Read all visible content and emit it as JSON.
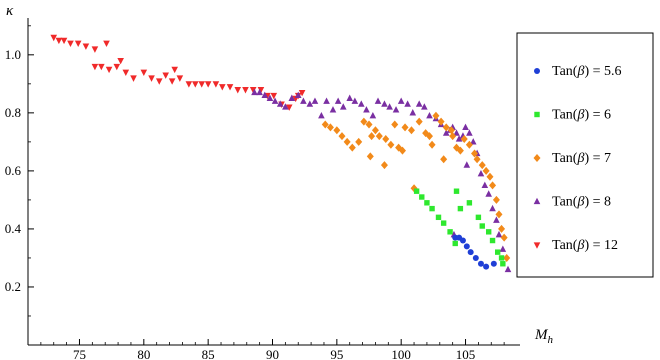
{
  "chart_data": {
    "type": "scatter",
    "xlabel": "M_h",
    "xlabel_main": "M",
    "xlabel_sub": "h",
    "ylabel": "κ",
    "xlim": [
      71,
      109
    ],
    "ylim": [
      0.0,
      1.12
    ],
    "x_ticks": [
      75,
      80,
      85,
      90,
      95,
      100,
      105
    ],
    "x_tick_labels": [
      "75",
      "80",
      "85",
      "90",
      "95",
      "100",
      "105"
    ],
    "y_ticks": [
      0.2,
      0.4,
      0.6,
      0.8,
      1.0
    ],
    "y_tick_labels": [
      "0.2",
      "0.4",
      "0.6",
      "0.8",
      "1.0"
    ],
    "grid": false,
    "legend_position": "right",
    "series": [
      {
        "name": "Tan(β) = 5.6",
        "label_prefix": "Tan(",
        "label_symbol": "β",
        "label_suffix": ") = 5.6",
        "color": "#1f3fd6",
        "marker": "circle",
        "points": [
          [
            104.2,
            0.37
          ],
          [
            104.5,
            0.37
          ],
          [
            104.8,
            0.36
          ],
          [
            105.1,
            0.34
          ],
          [
            105.4,
            0.32
          ],
          [
            105.8,
            0.3
          ],
          [
            106.2,
            0.28
          ],
          [
            106.6,
            0.27
          ],
          [
            107.2,
            0.28
          ]
        ]
      },
      {
        "name": "Tan(β) = 6",
        "label_prefix": "Tan(",
        "label_symbol": "β",
        "label_suffix": ") = 6",
        "color": "#2ee82e",
        "marker": "square",
        "points": [
          [
            101.2,
            0.53
          ],
          [
            101.6,
            0.51
          ],
          [
            102.0,
            0.49
          ],
          [
            102.4,
            0.47
          ],
          [
            102.9,
            0.44
          ],
          [
            103.3,
            0.42
          ],
          [
            103.8,
            0.39
          ],
          [
            104.2,
            0.35
          ],
          [
            104.3,
            0.53
          ],
          [
            104.6,
            0.47
          ],
          [
            105.3,
            0.49
          ],
          [
            106.0,
            0.44
          ],
          [
            106.3,
            0.41
          ],
          [
            106.8,
            0.39
          ],
          [
            107.1,
            0.36
          ],
          [
            107.5,
            0.32
          ],
          [
            107.8,
            0.3
          ],
          [
            107.9,
            0.28
          ]
        ]
      },
      {
        "name": "Tan(β) = 7",
        "label_prefix": "Tan(",
        "label_symbol": "β",
        "label_suffix": ") = 7",
        "color": "#f28a1a",
        "marker": "diamond",
        "points": [
          [
            94.1,
            0.76
          ],
          [
            94.5,
            0.75
          ],
          [
            95.0,
            0.74
          ],
          [
            95.4,
            0.72
          ],
          [
            95.8,
            0.7
          ],
          [
            96.2,
            0.68
          ],
          [
            96.7,
            0.7
          ],
          [
            97.1,
            0.77
          ],
          [
            97.5,
            0.76
          ],
          [
            98.0,
            0.74
          ],
          [
            98.3,
            0.72
          ],
          [
            97.6,
            0.65
          ],
          [
            98.8,
            0.71
          ],
          [
            99.2,
            0.69
          ],
          [
            99.5,
            0.76
          ],
          [
            99.8,
            0.68
          ],
          [
            100.1,
            0.67
          ],
          [
            100.3,
            0.75
          ],
          [
            100.8,
            0.74
          ],
          [
            101.0,
            0.54
          ],
          [
            101.4,
            0.77
          ],
          [
            101.9,
            0.73
          ],
          [
            102.2,
            0.72
          ],
          [
            102.4,
            0.69
          ],
          [
            102.7,
            0.79
          ],
          [
            103.1,
            0.77
          ],
          [
            103.3,
            0.64
          ],
          [
            103.5,
            0.75
          ],
          [
            103.9,
            0.74
          ],
          [
            104.0,
            0.72
          ],
          [
            104.3,
            0.68
          ],
          [
            104.6,
            0.67
          ],
          [
            104.9,
            0.71
          ],
          [
            105.3,
            0.69
          ],
          [
            105.7,
            0.66
          ],
          [
            105.9,
            0.64
          ],
          [
            106.3,
            0.62
          ],
          [
            106.6,
            0.6
          ],
          [
            106.9,
            0.58
          ],
          [
            107.1,
            0.55
          ],
          [
            107.4,
            0.5
          ],
          [
            107.6,
            0.45
          ],
          [
            107.8,
            0.4
          ],
          [
            108.0,
            0.37
          ],
          [
            108.2,
            0.3
          ],
          [
            98.7,
            0.62
          ],
          [
            97.7,
            0.72
          ]
        ]
      },
      {
        "name": "Tan(β) = 8",
        "label_prefix": "Tan(",
        "label_symbol": "β",
        "label_suffix": ") = 8",
        "color": "#7a2fa2",
        "marker": "triangle-up",
        "points": [
          [
            88.6,
            0.87
          ],
          [
            89.0,
            0.87
          ],
          [
            89.4,
            0.86
          ],
          [
            89.8,
            0.85
          ],
          [
            90.2,
            0.84
          ],
          [
            90.6,
            0.83
          ],
          [
            91.0,
            0.82
          ],
          [
            91.5,
            0.85
          ],
          [
            92.0,
            0.86
          ],
          [
            92.4,
            0.84
          ],
          [
            92.9,
            0.83
          ],
          [
            93.3,
            0.84
          ],
          [
            93.8,
            0.79
          ],
          [
            94.2,
            0.84
          ],
          [
            94.7,
            0.81
          ],
          [
            95.1,
            0.84
          ],
          [
            95.5,
            0.82
          ],
          [
            96.0,
            0.85
          ],
          [
            96.4,
            0.84
          ],
          [
            96.9,
            0.83
          ],
          [
            97.3,
            0.81
          ],
          [
            97.8,
            0.79
          ],
          [
            98.2,
            0.84
          ],
          [
            98.7,
            0.83
          ],
          [
            99.1,
            0.82
          ],
          [
            99.6,
            0.81
          ],
          [
            100.0,
            0.84
          ],
          [
            100.5,
            0.83
          ],
          [
            100.9,
            0.8
          ],
          [
            101.4,
            0.83
          ],
          [
            101.8,
            0.82
          ],
          [
            102.2,
            0.79
          ],
          [
            102.7,
            0.78
          ],
          [
            103.1,
            0.76
          ],
          [
            103.5,
            0.73
          ],
          [
            103.8,
            0.74
          ],
          [
            104.0,
            0.75
          ],
          [
            104.3,
            0.73
          ],
          [
            104.5,
            0.71
          ],
          [
            104.8,
            0.72
          ],
          [
            105.0,
            0.75
          ],
          [
            105.3,
            0.73
          ],
          [
            105.1,
            0.62
          ],
          [
            105.6,
            0.7
          ],
          [
            105.9,
            0.66
          ],
          [
            106.2,
            0.59
          ],
          [
            106.5,
            0.55
          ],
          [
            106.8,
            0.52
          ],
          [
            107.1,
            0.47
          ],
          [
            107.4,
            0.43
          ],
          [
            107.6,
            0.38
          ],
          [
            107.9,
            0.33
          ],
          [
            108.3,
            0.26
          ],
          [
            104.1,
            0.38
          ]
        ]
      },
      {
        "name": "Tan(β) = 12",
        "label_prefix": "Tan(",
        "label_symbol": "β",
        "label_suffix": ") = 12",
        "color": "#f02a2a",
        "marker": "triangle-down",
        "points": [
          [
            73.0,
            1.06
          ],
          [
            73.4,
            1.05
          ],
          [
            73.8,
            1.05
          ],
          [
            74.3,
            1.04
          ],
          [
            74.9,
            1.04
          ],
          [
            75.5,
            1.03
          ],
          [
            76.2,
            1.02
          ],
          [
            77.1,
            1.04
          ],
          [
            76.2,
            0.96
          ],
          [
            76.7,
            0.96
          ],
          [
            77.3,
            0.95
          ],
          [
            77.9,
            0.96
          ],
          [
            78.6,
            0.94
          ],
          [
            78.2,
            0.98
          ],
          [
            79.2,
            0.92
          ],
          [
            80.0,
            0.94
          ],
          [
            80.6,
            0.92
          ],
          [
            81.2,
            0.91
          ],
          [
            81.7,
            0.93
          ],
          [
            82.2,
            0.91
          ],
          [
            82.4,
            0.95
          ],
          [
            82.8,
            0.92
          ],
          [
            83.5,
            0.9
          ],
          [
            84.0,
            0.9
          ],
          [
            84.5,
            0.9
          ],
          [
            85.0,
            0.9
          ],
          [
            85.6,
            0.9
          ],
          [
            86.1,
            0.89
          ],
          [
            86.7,
            0.89
          ],
          [
            87.3,
            0.88
          ],
          [
            87.9,
            0.88
          ],
          [
            88.5,
            0.88
          ],
          [
            89.1,
            0.88
          ],
          [
            89.6,
            0.86
          ],
          [
            90.1,
            0.86
          ],
          [
            90.7,
            0.83
          ],
          [
            91.3,
            0.82
          ],
          [
            91.8,
            0.85
          ],
          [
            92.0,
            0.86
          ],
          [
            92.3,
            0.87
          ]
        ]
      }
    ]
  }
}
